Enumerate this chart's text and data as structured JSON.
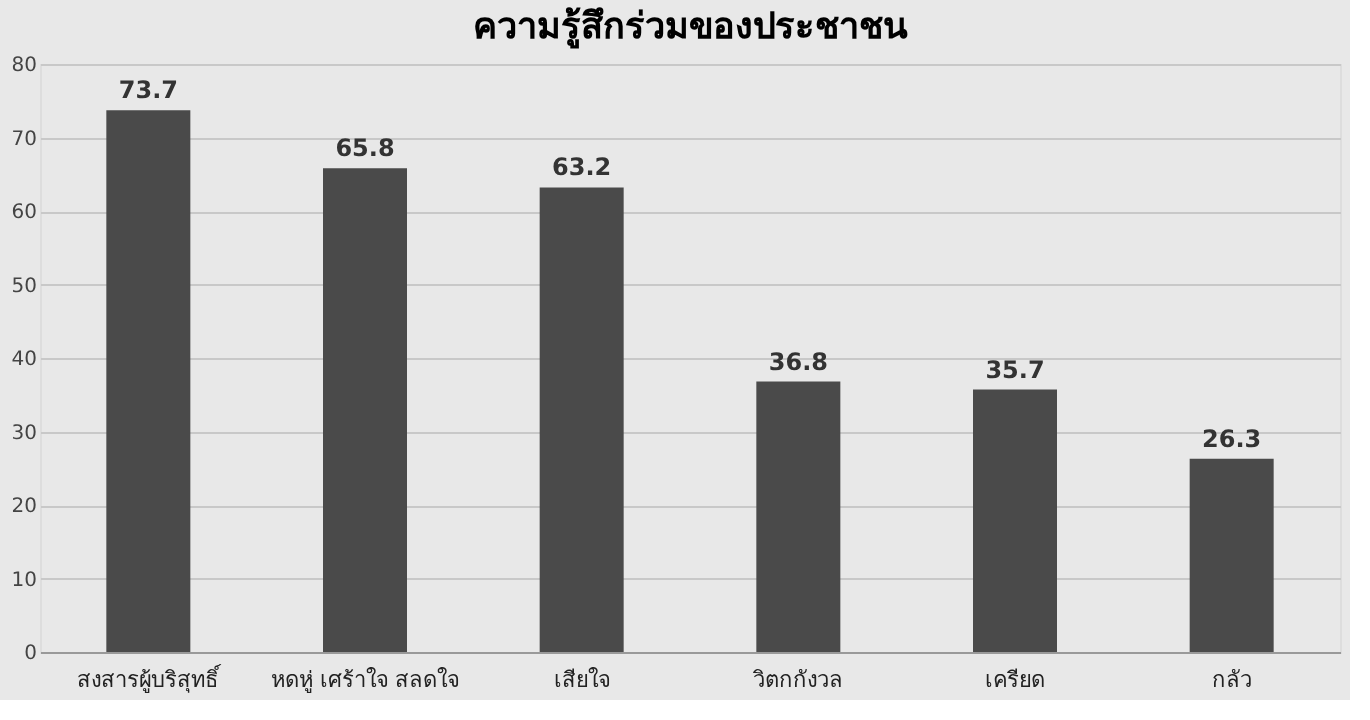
{
  "chart_data": {
    "type": "bar",
    "title": "ความรู้สึกร่วมของประชาชน",
    "categories": [
      "สงสารผู้บริสุทธิ์",
      "หดหู่ เศร้าใจ สลดใจ",
      "เสียใจ",
      "วิตกกังวล",
      "เครียด",
      "กลัว"
    ],
    "values": [
      73.7,
      65.8,
      63.2,
      36.8,
      35.7,
      26.3
    ],
    "color": "#4a4a4a",
    "ylim": [
      0,
      80
    ],
    "yticks": [
      0,
      10,
      20,
      30,
      40,
      50,
      60,
      70,
      80
    ],
    "grid": "y",
    "data_labels": true
  }
}
